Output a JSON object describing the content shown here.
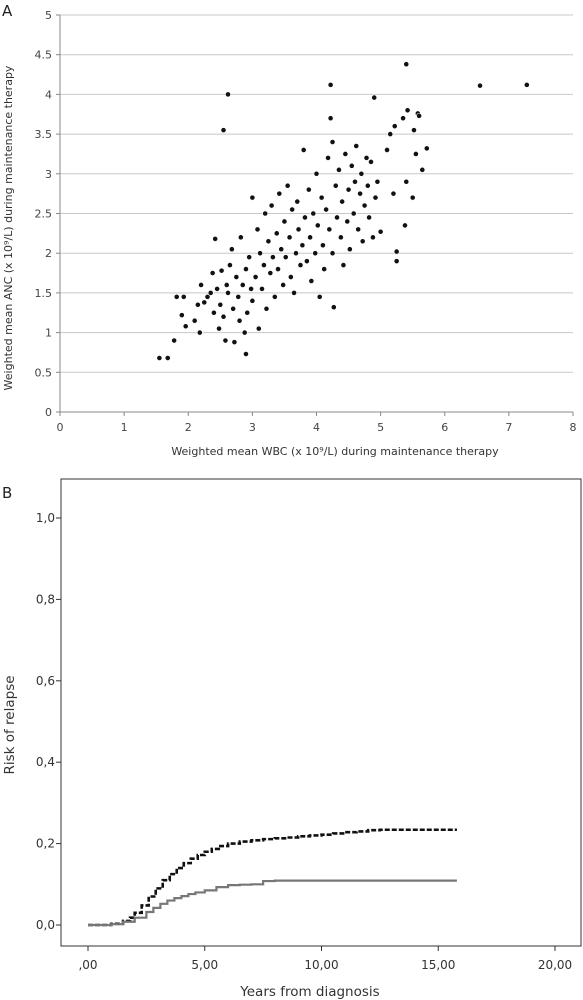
{
  "panel_a_letter": "A",
  "panel_b_letter": "B",
  "chart_data": [
    {
      "type": "scatter",
      "panel": "A",
      "xlabel": "Weighted mean WBC (x 10⁹/L) during maintenance therapy",
      "ylabel": "Weighted mean ANC (x 10⁹/L) during maintenance therapy",
      "xlim": [
        0,
        8
      ],
      "ylim": [
        0,
        5
      ],
      "xticks": [
        "0",
        "1",
        "2",
        "3",
        "4",
        "5",
        "6",
        "7",
        "8"
      ],
      "yticks": [
        "0",
        "0.5",
        "1",
        "1.5",
        "2",
        "2.5",
        "3",
        "3.5",
        "4",
        "4.5",
        "5"
      ],
      "grid": "horizontal",
      "series": [
        {
          "values": [
            [
              1.55,
              0.68
            ],
            [
              1.68,
              0.68
            ],
            [
              1.78,
              0.9
            ],
            [
              1.82,
              1.45
            ],
            [
              1.9,
              1.22
            ],
            [
              1.93,
              1.45
            ],
            [
              1.96,
              1.08
            ],
            [
              2.1,
              1.15
            ],
            [
              2.15,
              1.35
            ],
            [
              2.18,
              1.0
            ],
            [
              2.2,
              1.6
            ],
            [
              2.25,
              1.38
            ],
            [
              2.3,
              1.45
            ],
            [
              2.35,
              1.5
            ],
            [
              2.4,
              1.25
            ],
            [
              2.38,
              1.75
            ],
            [
              2.42,
              2.18
            ],
            [
              2.45,
              1.55
            ],
            [
              2.48,
              1.05
            ],
            [
              2.5,
              1.35
            ],
            [
              2.52,
              1.78
            ],
            [
              2.55,
              3.55
            ],
            [
              2.55,
              1.2
            ],
            [
              2.58,
              0.9
            ],
            [
              2.6,
              1.6
            ],
            [
              2.62,
              4.0
            ],
            [
              2.62,
              1.5
            ],
            [
              2.65,
              1.85
            ],
            [
              2.68,
              2.05
            ],
            [
              2.7,
              1.3
            ],
            [
              2.72,
              0.88
            ],
            [
              2.75,
              1.7
            ],
            [
              2.78,
              1.45
            ],
            [
              2.8,
              1.15
            ],
            [
              2.82,
              2.2
            ],
            [
              2.85,
              1.6
            ],
            [
              2.88,
              1.0
            ],
            [
              2.9,
              0.73
            ],
            [
              2.9,
              1.8
            ],
            [
              2.92,
              1.25
            ],
            [
              2.95,
              1.95
            ],
            [
              2.98,
              1.55
            ],
            [
              3.0,
              2.7
            ],
            [
              3.0,
              1.4
            ],
            [
              3.05,
              1.7
            ],
            [
              3.08,
              2.3
            ],
            [
              3.1,
              1.05
            ],
            [
              3.12,
              2.0
            ],
            [
              3.15,
              1.55
            ],
            [
              3.18,
              1.85
            ],
            [
              3.2,
              2.5
            ],
            [
              3.22,
              1.3
            ],
            [
              3.25,
              2.15
            ],
            [
              3.28,
              1.75
            ],
            [
              3.3,
              2.6
            ],
            [
              3.32,
              1.95
            ],
            [
              3.35,
              1.45
            ],
            [
              3.38,
              2.25
            ],
            [
              3.4,
              1.8
            ],
            [
              3.42,
              2.75
            ],
            [
              3.45,
              2.05
            ],
            [
              3.48,
              1.6
            ],
            [
              3.5,
              2.4
            ],
            [
              3.52,
              1.95
            ],
            [
              3.55,
              2.85
            ],
            [
              3.58,
              2.2
            ],
            [
              3.6,
              1.7
            ],
            [
              3.62,
              2.55
            ],
            [
              3.65,
              1.5
            ],
            [
              3.68,
              2.0
            ],
            [
              3.7,
              2.65
            ],
            [
              3.72,
              2.3
            ],
            [
              3.75,
              1.85
            ],
            [
              3.78,
              2.1
            ],
            [
              3.8,
              3.3
            ],
            [
              3.82,
              2.45
            ],
            [
              3.85,
              1.9
            ],
            [
              3.88,
              2.8
            ],
            [
              3.9,
              2.2
            ],
            [
              3.92,
              1.65
            ],
            [
              3.95,
              2.5
            ],
            [
              3.98,
              2.0
            ],
            [
              4.0,
              3.0
            ],
            [
              4.02,
              2.35
            ],
            [
              4.05,
              1.45
            ],
            [
              4.08,
              2.7
            ],
            [
              4.1,
              2.1
            ],
            [
              4.12,
              1.8
            ],
            [
              4.15,
              2.55
            ],
            [
              4.18,
              3.2
            ],
            [
              4.2,
              2.3
            ],
            [
              4.22,
              3.7
            ],
            [
              4.22,
              4.12
            ],
            [
              4.25,
              3.4
            ],
            [
              4.25,
              2.0
            ],
            [
              4.27,
              1.32
            ],
            [
              4.3,
              2.85
            ],
            [
              4.32,
              2.45
            ],
            [
              4.35,
              3.05
            ],
            [
              4.38,
              2.2
            ],
            [
              4.4,
              2.65
            ],
            [
              4.42,
              1.85
            ],
            [
              4.45,
              3.25
            ],
            [
              4.48,
              2.4
            ],
            [
              4.5,
              2.8
            ],
            [
              4.52,
              2.05
            ],
            [
              4.55,
              3.1
            ],
            [
              4.58,
              2.5
            ],
            [
              4.6,
              2.9
            ],
            [
              4.62,
              3.35
            ],
            [
              4.65,
              2.3
            ],
            [
              4.68,
              2.75
            ],
            [
              4.7,
              3.0
            ],
            [
              4.72,
              2.15
            ],
            [
              4.75,
              2.6
            ],
            [
              4.78,
              3.2
            ],
            [
              4.8,
              2.85
            ],
            [
              4.82,
              2.45
            ],
            [
              4.85,
              3.15
            ],
            [
              4.88,
              2.2
            ],
            [
              4.9,
              3.96
            ],
            [
              4.92,
              2.7
            ],
            [
              4.95,
              2.9
            ],
            [
              5.0,
              2.27
            ],
            [
              5.1,
              3.3
            ],
            [
              5.15,
              3.5
            ],
            [
              5.2,
              2.75
            ],
            [
              5.22,
              3.6
            ],
            [
              5.25,
              2.02
            ],
            [
              5.25,
              1.9
            ],
            [
              5.35,
              3.7
            ],
            [
              5.38,
              2.35
            ],
            [
              5.4,
              2.9
            ],
            [
              5.4,
              4.38
            ],
            [
              5.42,
              3.8
            ],
            [
              5.5,
              2.7
            ],
            [
              5.52,
              3.55
            ],
            [
              5.55,
              3.25
            ],
            [
              5.58,
              3.76
            ],
            [
              5.6,
              3.73
            ],
            [
              5.65,
              3.05
            ],
            [
              5.72,
              3.32
            ],
            [
              6.55,
              4.11
            ],
            [
              7.28,
              4.12
            ]
          ]
        }
      ]
    },
    {
      "type": "line",
      "panel": "B",
      "xlabel": "Years from diagnosis",
      "ylabel": "Risk of relapse",
      "xlim": [
        0,
        20
      ],
      "ylim": [
        0,
        1
      ],
      "xticks": [
        ",00",
        "5,00",
        "10,00",
        "15,00",
        "20,00"
      ],
      "yticks": [
        "0,0",
        "0,2",
        "0,4",
        "0,6",
        "0,8",
        "1,0"
      ],
      "series": [
        {
          "style": "dashed-black",
          "color": "#111111",
          "x": [
            0,
            0.5,
            1.0,
            1.5,
            1.8,
            2.0,
            2.3,
            2.6,
            2.9,
            3.2,
            3.5,
            3.8,
            4.1,
            4.4,
            4.7,
            5.0,
            5.3,
            5.6,
            6.0,
            6.5,
            7.0,
            7.5,
            8.0,
            8.5,
            9.0,
            9.5,
            10.0,
            10.5,
            11.0,
            11.5,
            12.0,
            12.5,
            13.0,
            14.0,
            15.0,
            15.8
          ],
          "values": [
            0,
            0.0,
            0.003,
            0.01,
            0.018,
            0.03,
            0.048,
            0.07,
            0.09,
            0.11,
            0.125,
            0.14,
            0.152,
            0.163,
            0.172,
            0.18,
            0.187,
            0.194,
            0.2,
            0.205,
            0.208,
            0.211,
            0.213,
            0.215,
            0.218,
            0.22,
            0.222,
            0.225,
            0.228,
            0.23,
            0.233,
            0.234,
            0.234,
            0.234,
            0.234,
            0.234
          ]
        },
        {
          "style": "solid-gray",
          "color": "#777777",
          "x": [
            0,
            0.5,
            1.0,
            1.5,
            2.0,
            2.5,
            2.8,
            3.1,
            3.4,
            3.7,
            4.0,
            4.3,
            4.6,
            5.0,
            5.5,
            6.0,
            6.5,
            7.0,
            7.5,
            8.0,
            9.0,
            10.0,
            12.0,
            14.0,
            15.8
          ],
          "values": [
            0,
            0.0,
            0.002,
            0.008,
            0.018,
            0.032,
            0.042,
            0.052,
            0.06,
            0.066,
            0.071,
            0.076,
            0.08,
            0.085,
            0.093,
            0.098,
            0.099,
            0.1,
            0.108,
            0.109,
            0.109,
            0.109,
            0.109,
            0.109,
            0.109
          ]
        }
      ]
    }
  ]
}
